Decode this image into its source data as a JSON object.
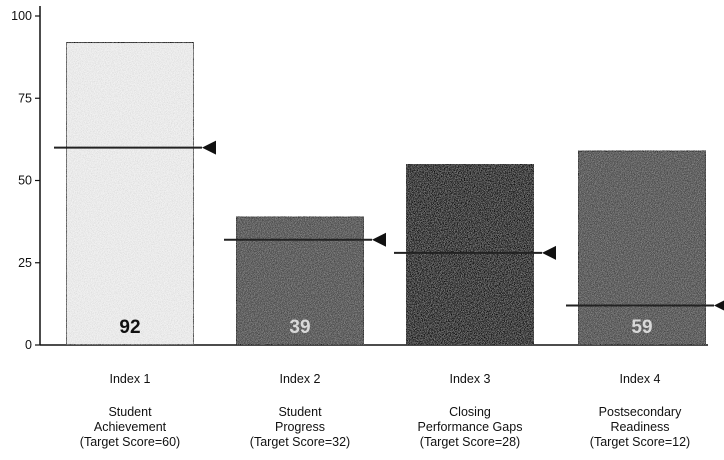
{
  "chart_data": {
    "type": "bar",
    "title": "",
    "xlabel": "",
    "ylabel": "",
    "ylim": [
      0,
      100
    ],
    "yticks": [
      0,
      25,
      50,
      75,
      100
    ],
    "categories": [
      {
        "index": "Index 1",
        "name": "Student Achievement",
        "name_lines": [
          "Student",
          "Achievement"
        ],
        "target_text": "(Target Score=60)"
      },
      {
        "index": "Index 2",
        "name": "Student Progress",
        "name_lines": [
          "Student",
          "Progress"
        ],
        "target_text": "(Target Score=32)"
      },
      {
        "index": "Index 3",
        "name": "Closing Performance Gaps",
        "name_lines": [
          "Closing",
          "Performance Gaps"
        ],
        "target_text": "(Target Score=28)"
      },
      {
        "index": "Index 4",
        "name": "Postsecondary Readiness",
        "name_lines": [
          "Postsecondary",
          "Readiness"
        ],
        "target_text": "(Target Score=12)"
      }
    ],
    "values": [
      92,
      39,
      55,
      59
    ],
    "value_labels": [
      "92",
      "39",
      "",
      "59"
    ],
    "targets": [
      60,
      32,
      28,
      12
    ],
    "bar_colors": [
      "#f2f2f2",
      "#4a4a4a",
      "#0a0a0a",
      "#4a4a4a"
    ],
    "value_label_colors": [
      "#111111",
      "#d8d8d8",
      "#ffffff",
      "#d8d8d8"
    ],
    "grid": false,
    "legend": "none"
  }
}
